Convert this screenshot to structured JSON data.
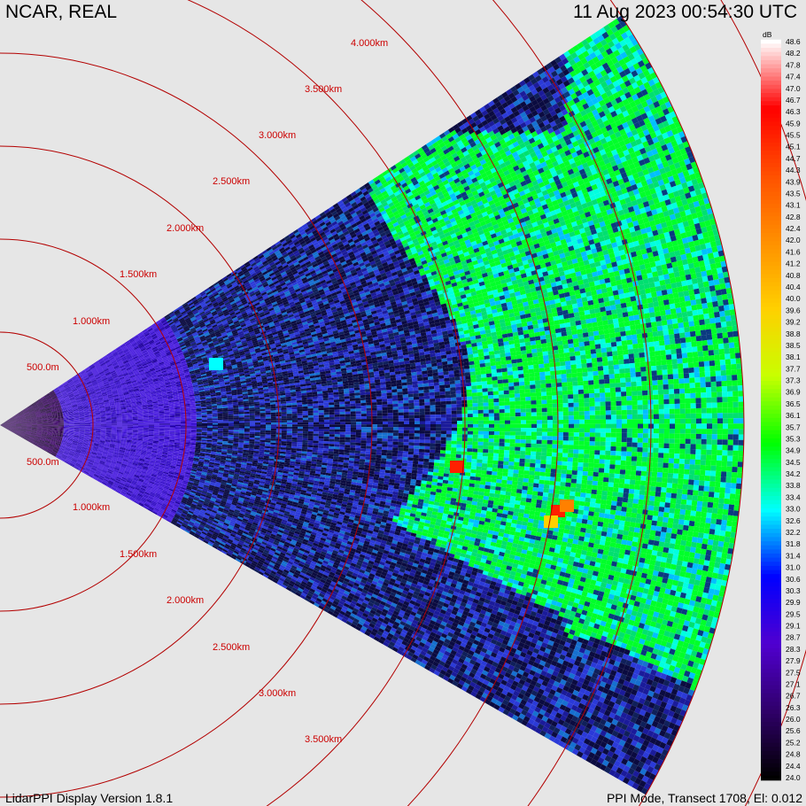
{
  "header": {
    "site": "NCAR, REAL",
    "datetime": "11 Aug 2023  00:54:30 UTC"
  },
  "footer": {
    "version": "LidarPPI Display Version 1.8.1",
    "mode": "PPI Mode, Transect 1708, El: 0.012"
  },
  "range_rings": {
    "upper_labels": [
      "500.0m",
      "1.000km",
      "1.500km",
      "2.000km",
      "2.500km",
      "3.000km",
      "3.500km",
      "4.000km"
    ],
    "lower_labels": [
      "500.0m",
      "1.000km",
      "1.500km",
      "2.000km",
      "2.500km",
      "3.000km",
      "3.500km"
    ],
    "ring_color": "#b30000"
  },
  "colorbar": {
    "unit": "dB",
    "min": 24.0,
    "max": 48.6,
    "labels": [
      "48.6",
      "48.2",
      "47.8",
      "47.4",
      "47.0",
      "46.7",
      "46.3",
      "45.9",
      "45.5",
      "45.1",
      "44.7",
      "44.3",
      "43.9",
      "43.5",
      "43.1",
      "42.8",
      "42.4",
      "42.0",
      "41.6",
      "41.2",
      "40.8",
      "40.4",
      "40.0",
      "39.6",
      "39.2",
      "38.8",
      "38.5",
      "38.1",
      "37.7",
      "37.3",
      "36.9",
      "36.5",
      "36.1",
      "35.7",
      "35.3",
      "34.9",
      "34.5",
      "34.2",
      "33.8",
      "33.4",
      "33.0",
      "32.6",
      "32.2",
      "31.8",
      "31.4",
      "31.0",
      "30.6",
      "30.3",
      "29.9",
      "29.5",
      "29.1",
      "28.7",
      "28.3",
      "27.9",
      "27.5",
      "27.1",
      "26.7",
      "26.3",
      "26.0",
      "25.6",
      "25.2",
      "24.8",
      "24.4",
      "24.0"
    ],
    "colors": [
      "#ffffff",
      "#ff0000",
      "#ff5000",
      "#ff9000",
      "#ffd000",
      "#c8ff00",
      "#00ff00",
      "#00ffff",
      "#0000ff",
      "#5000d0",
      "#30006a",
      "#000000"
    ]
  }
}
